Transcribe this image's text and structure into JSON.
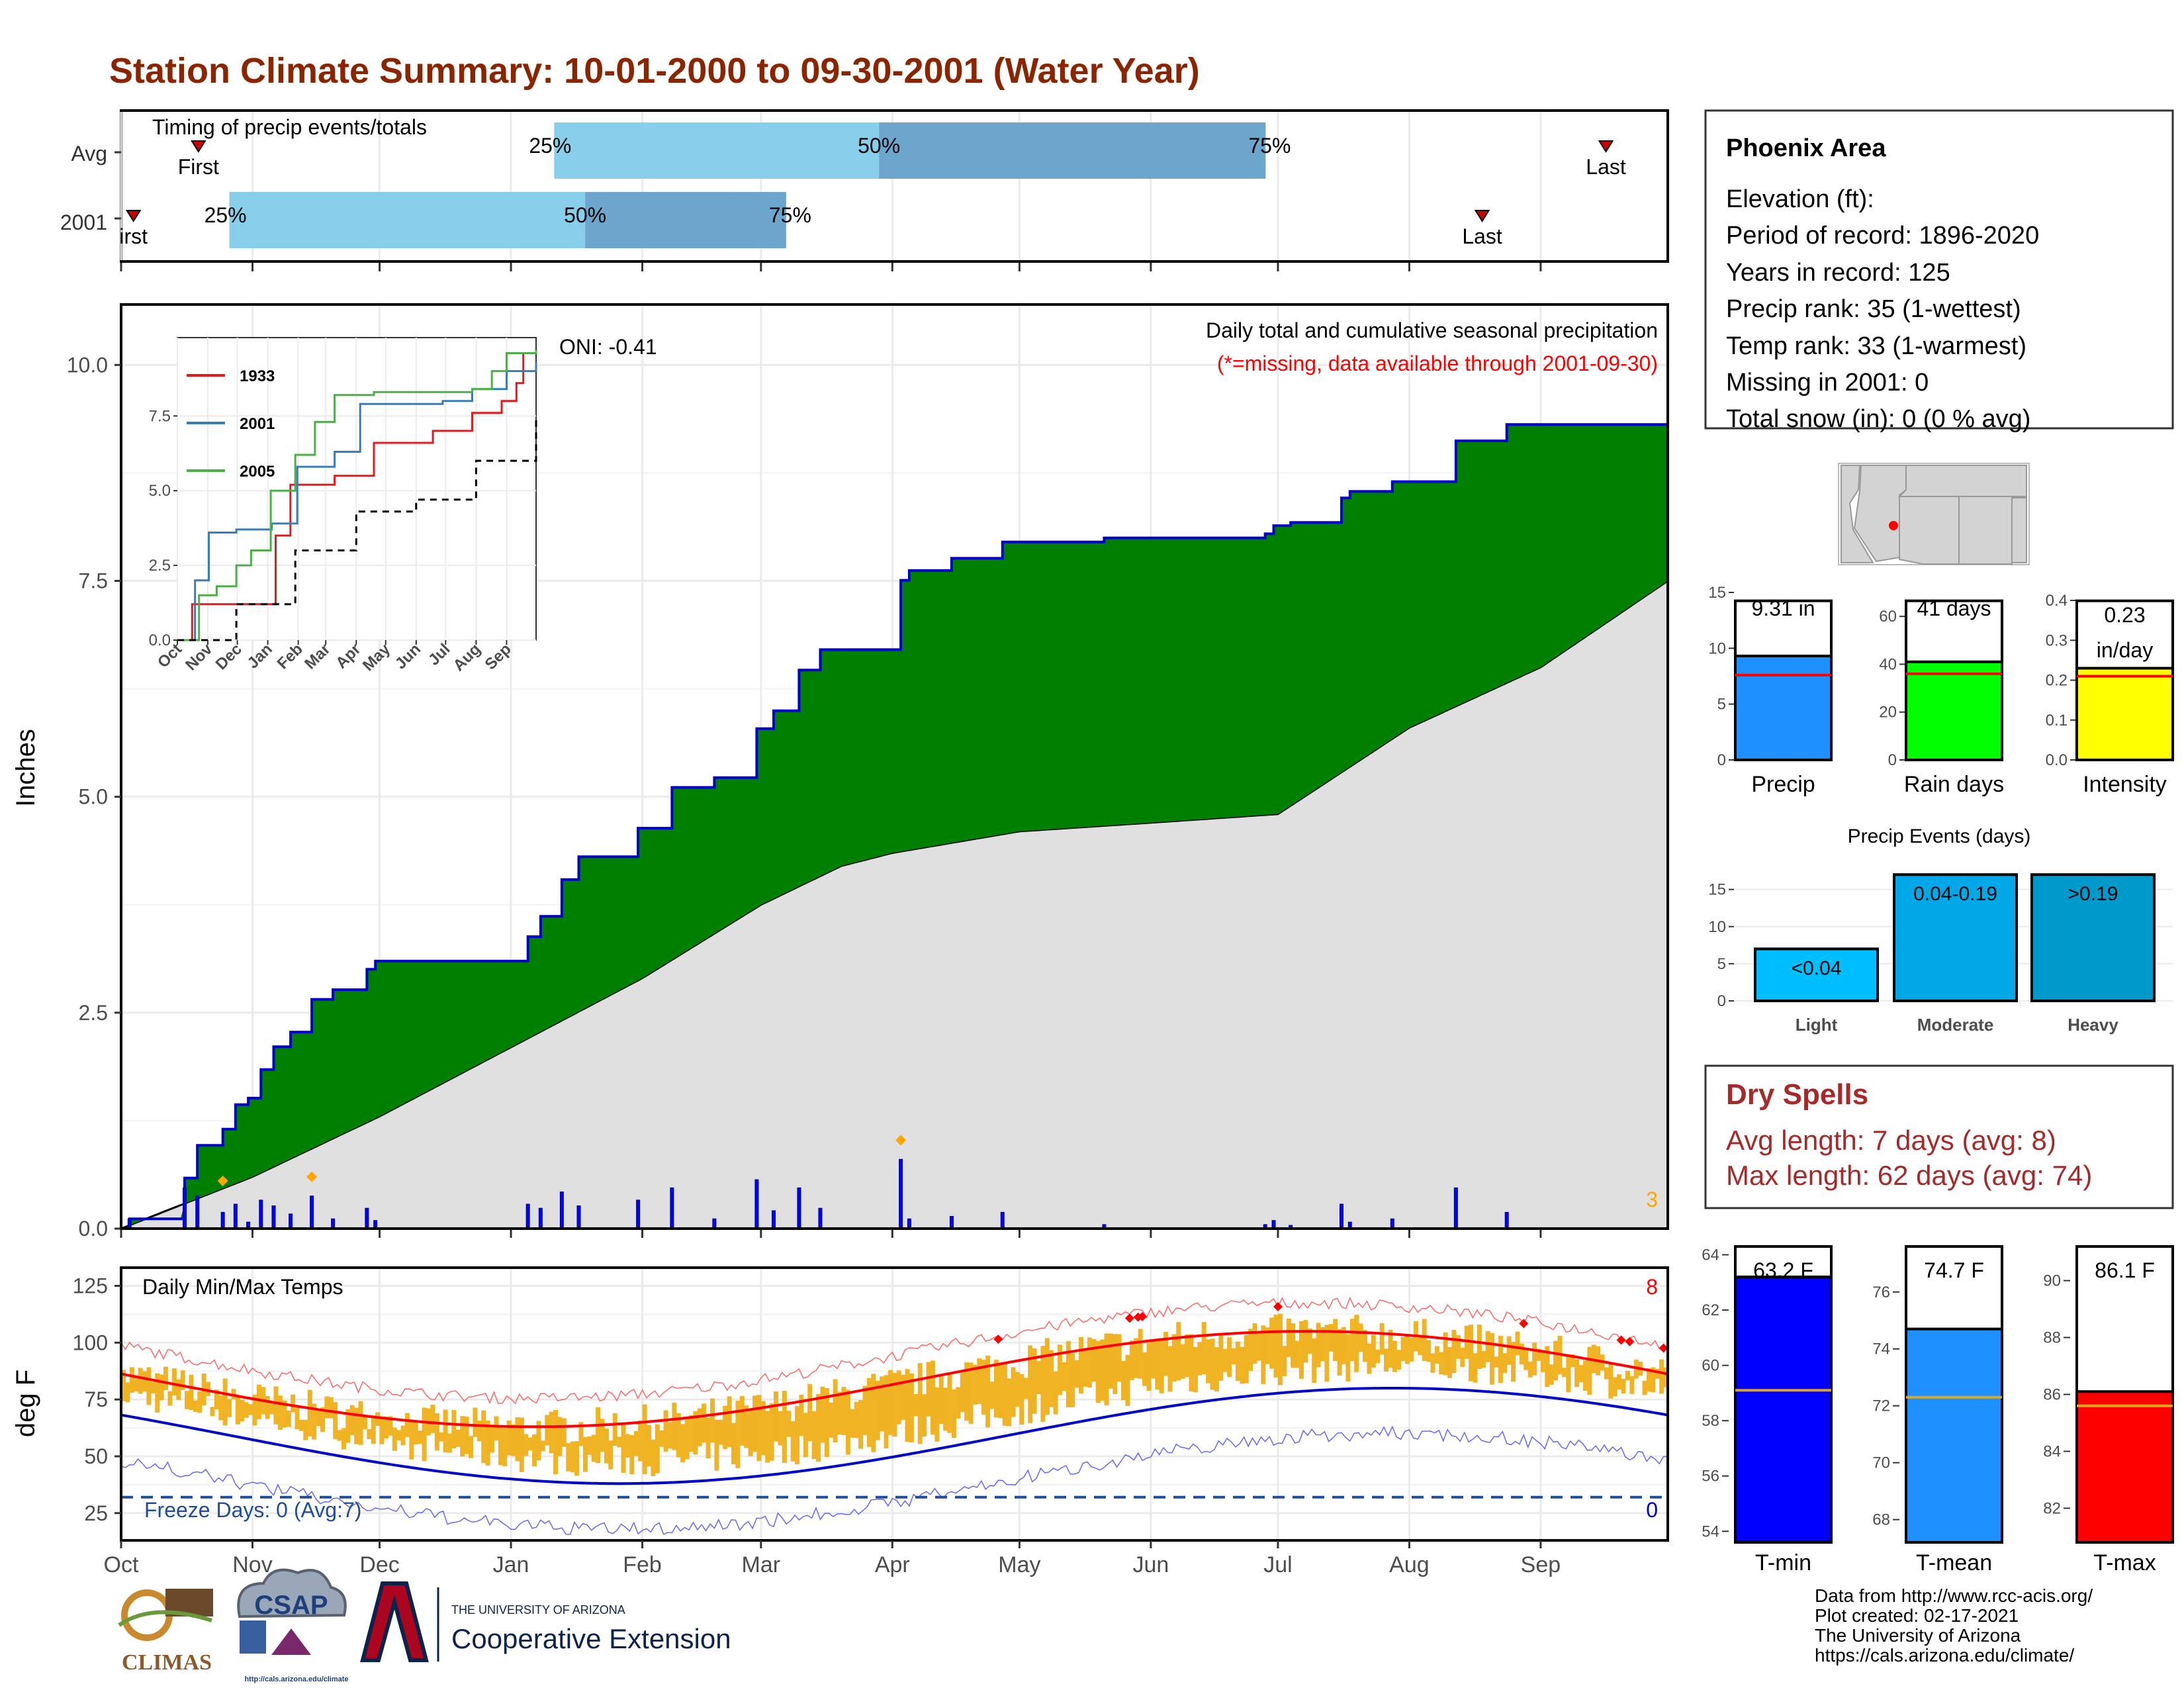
{
  "page_title": "Station Climate Summary: 10-01-2000 to 09-30-2001 (Water Year)",
  "timing_panel": {
    "title": "Timing of precip events/totals",
    "rows": [
      {
        "label": "Avg",
        "first_label": "First",
        "last_label": "Last",
        "first": 0.05,
        "last": 0.96,
        "p25": 0.28,
        "p50": 0.49,
        "p75": 0.74
      },
      {
        "label": "2001",
        "first_label": "irst",
        "last_label": "Last",
        "first": 0.008,
        "last": 0.88,
        "p25": 0.07,
        "p50": 0.3,
        "p75": 0.43
      }
    ],
    "pct_labels": [
      "25%",
      "50%",
      "75%"
    ],
    "colors": {
      "early": "#87ceeb",
      "late": "#6ca6cd",
      "marker": "#cc0000"
    }
  },
  "main_chart": {
    "title_line1": "Daily total and cumulative seasonal precipitation",
    "title_line2": "(*=missing, data available through 2001-09-30)",
    "oni": "ONI: -0.41",
    "ylabel": "Inches",
    "y_ticks": [
      "0.0",
      "2.5",
      "5.0",
      "7.5",
      "10.0"
    ],
    "corner_count": "3",
    "colors": {
      "above_avg": "#008000",
      "avg_fill": "#e0e0e0",
      "cumulative_line": "#0000cd",
      "daily_bars": "#0000ff",
      "extreme_marker": "#ffa500",
      "missing_note": "#ff0000"
    }
  },
  "inset": {
    "legend": [
      "1933",
      "2001",
      "2005"
    ],
    "legend_colors": [
      "#e41a1c",
      "#377eb8",
      "#4daf4a"
    ],
    "y_ticks": [
      "0.0",
      "2.5",
      "5.0",
      "7.5"
    ],
    "x_ticks": [
      "Oct",
      "Nov",
      "Dec",
      "Jan",
      "Feb",
      "Mar",
      "Apr",
      "May",
      "Jun",
      "Jul",
      "Aug",
      "Sep"
    ]
  },
  "temp_chart": {
    "title": "Daily Min/Max Temps",
    "ylabel": "deg F",
    "y_ticks": [
      "25",
      "50",
      "75",
      "100",
      "125"
    ],
    "freeze_label": "Freeze Days: 0 (Avg:7)",
    "top_count": "8",
    "bottom_count": "0",
    "colors": {
      "range_bars": "#f0b323",
      "avg_max": "#ff0000",
      "avg_min": "#0000cd",
      "record_max": "#ff6666",
      "record_min": "#6666ff",
      "freeze_line": "#1f4e99"
    }
  },
  "months": [
    "Oct",
    "Nov",
    "Dec",
    "Jan",
    "Feb",
    "Mar",
    "Apr",
    "May",
    "Jun",
    "Jul",
    "Aug",
    "Sep"
  ],
  "info_box": {
    "title": "Phoenix Area",
    "lines": [
      "Elevation (ft):",
      "Period of record: 1896-2020",
      "Years in record: 125",
      "Precip rank: 35 (1-wettest)",
      "Temp rank: 33 (1-warmest)",
      "Missing in 2001: 0",
      "Total snow (in): 0 (0 % avg)"
    ]
  },
  "summary_bars": [
    {
      "label": "Precip",
      "value_text": "9.31 in",
      "value": 9.31,
      "avg": 7.6,
      "ymax": 15,
      "ticks": [
        "0",
        "5",
        "10",
        "15"
      ],
      "color": "#1e90ff"
    },
    {
      "label": "Rain days",
      "value_text": "41 days",
      "value": 41,
      "avg": 36,
      "ymax": 70,
      "ticks": [
        "0",
        "20",
        "40",
        "60"
      ],
      "color": "#00ff00"
    },
    {
      "label": "Intensity",
      "value_text": "0.23 in/day",
      "value": 0.23,
      "avg": 0.21,
      "ymax": 0.42,
      "ticks": [
        "0.0",
        "0.1",
        "0.2",
        "0.3",
        "0.4"
      ],
      "color": "#ffff00"
    }
  ],
  "precip_events": {
    "title": "Precip Events (days)",
    "y_ticks": [
      "0",
      "5",
      "10",
      "15"
    ],
    "bars": [
      {
        "category": "Light",
        "range_label": "<0.04",
        "value": 7,
        "color": "#00bfff"
      },
      {
        "category": "Moderate",
        "range_label": "0.04-0.19",
        "value": 17,
        "color": "#00a8e8"
      },
      {
        "category": "Heavy",
        "range_label": ">0.19",
        "value": 17,
        "color": "#0099cc"
      }
    ]
  },
  "dry_spells": {
    "title": "Dry Spells",
    "avg_line": "Avg length: 7 days (avg: 8)",
    "max_line": "Max length: 62 days (avg: 74)",
    "color": "#a52a2a"
  },
  "temp_bars": [
    {
      "label": "T-min",
      "value_text": "63.2 F",
      "value": 63.2,
      "avg": 59.1,
      "ymin": 53.6,
      "ymax": 64.3,
      "ticks": [
        "54",
        "56",
        "58",
        "60",
        "62",
        "64"
      ],
      "color": "#0000ff"
    },
    {
      "label": "T-mean",
      "value_text": "74.7 F",
      "value": 74.7,
      "avg": 72.3,
      "ymin": 67.2,
      "ymax": 77.6,
      "ticks": [
        "68",
        "70",
        "72",
        "74",
        "76"
      ],
      "color": "#1e90ff"
    },
    {
      "label": "T-max",
      "value_text": "86.1 F",
      "value": 86.1,
      "avg": 85.6,
      "ymin": 80.8,
      "ymax": 91.2,
      "ticks": [
        "82",
        "84",
        "86",
        "88",
        "90"
      ],
      "color": "#ff0000"
    }
  ],
  "footer": {
    "logo_climas": "CLIMAS",
    "logo_csap": "CSAP",
    "csap_url": "http://cals.arizona.edu/climate",
    "ua_small": "THE UNIVERSITY OF ARIZONA",
    "ua_big": "Cooperative Extension",
    "credits": [
      "Data from http://www.rcc-acis.org/",
      "Plot created: 02-17-2021",
      "The University of Arizona",
      "https://cals.arizona.edu/climate/"
    ]
  }
}
